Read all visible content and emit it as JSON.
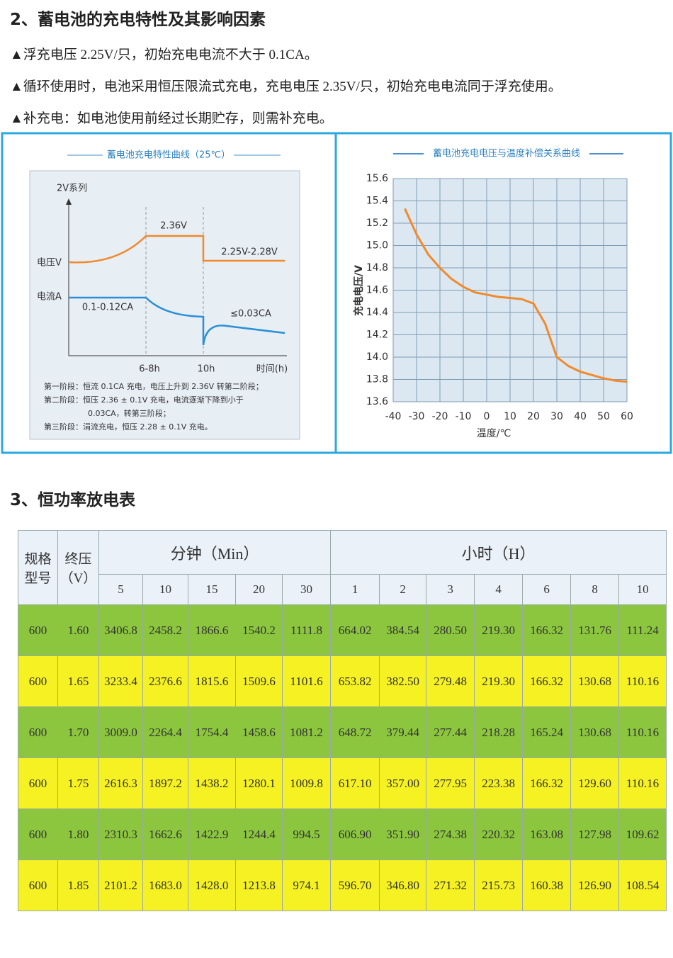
{
  "section2": {
    "title": "2、蓄电池的充电特性及其影响因素",
    "bullets": [
      "▲浮充电压 2.25V/只，初始充电电流不大于 0.1CA。",
      "▲循环使用时，电池采用恒压限流式充电，充电电压 2.35V/只，初始充电电流同于浮充使用。",
      "▲补充电：如电池使用前经过长期贮存，则需补充电。"
    ]
  },
  "charge_diagram": {
    "title": "蓄电池充电特性曲线（25℃）",
    "series_label": "2V系列",
    "voltage_axis": "电压V",
    "current_axis": "电流A",
    "voltage_boost": "2.36V",
    "voltage_float": "2.25V-2.28V",
    "current_start": "0.1-0.12CA",
    "current_end": "≤0.03CA",
    "time_1": "6-8h",
    "time_2": "10h",
    "time_axis": "时间(h)",
    "notes": [
      "第一阶段：恒流 0.1CA 充电，电压上升到 2.36V 转第二阶段；",
      "第二阶段：恒压 2.36 ± 0.1V 充电，电流逐渐下降到小于",
      "0.03CA，转第三阶段；",
      "第三阶段：涓流充电，恒压 2.28 ± 0.1V 充电。"
    ]
  },
  "chart_data": {
    "type": "line",
    "title": "蓄电池充电电压与温度补偿关系曲线",
    "x_label": "温度/℃",
    "y_label": "充电电压/V",
    "x": [
      -35,
      -30,
      -25,
      -20,
      -15,
      -10,
      -5,
      0,
      5,
      10,
      15,
      20,
      25,
      30,
      35,
      40,
      45,
      50,
      55,
      60
    ],
    "values": [
      15.33,
      15.1,
      14.92,
      14.8,
      14.7,
      14.63,
      14.58,
      14.56,
      14.54,
      14.53,
      14.52,
      14.48,
      14.3,
      14.0,
      13.92,
      13.87,
      13.84,
      13.81,
      13.79,
      13.78
    ],
    "color": "#f08a2c",
    "xlim": [
      -40,
      60
    ],
    "ylim": [
      13.6,
      15.6
    ],
    "xticks": [
      -40,
      -30,
      -20,
      -10,
      0,
      10,
      20,
      30,
      40,
      50,
      60
    ],
    "yticks": [
      13.6,
      13.8,
      {
        "value": 14,
        "label": "14.0"
      },
      14.2,
      14.4,
      14.6,
      14.8,
      {
        "value": 15,
        "label": "15.0"
      },
      15.2,
      15.4,
      15.6
    ],
    "grid": true
  },
  "section3": {
    "title": "3、恒功率放电表"
  },
  "table": {
    "model_header": "规格型号",
    "voltage_header": "终压（V）",
    "groups": [
      "分钟（Min）",
      "小时（H）"
    ],
    "columns": [
      "5",
      "10",
      "15",
      "20",
      "30",
      "1",
      "2",
      "3",
      "4",
      "6",
      "8",
      "10"
    ],
    "rows": [
      [
        "600",
        "1.60",
        "3406.8",
        "2458.2",
        "1866.6",
        "1540.2",
        "1111.8",
        "664.02",
        "384.54",
        "280.50",
        "219.30",
        "166.32",
        "131.76",
        "111.24"
      ],
      [
        "600",
        "1.65",
        "3233.4",
        "2376.6",
        "1815.6",
        "1509.6",
        "1101.6",
        "653.82",
        "382.50",
        "279.48",
        "219.30",
        "166.32",
        "130.68",
        "110.16"
      ],
      [
        "600",
        "1.70",
        "3009.0",
        "2264.4",
        "1754.4",
        "1458.6",
        "1081.2",
        "648.72",
        "379.44",
        "277.44",
        "218.28",
        "165.24",
        "130.68",
        "110.16"
      ],
      [
        "600",
        "1.75",
        "2616.3",
        "1897.2",
        "1438.2",
        "1280.1",
        "1009.8",
        "617.10",
        "357.00",
        "277.95",
        "223.38",
        "166.32",
        "129.60",
        "110.16"
      ],
      [
        "600",
        "1.80",
        "2310.3",
        "1662.6",
        "1422.9",
        "1244.4",
        "994.5",
        "606.90",
        "351.90",
        "274.38",
        "220.32",
        "163.08",
        "127.98",
        "109.62"
      ],
      [
        "600",
        "1.85",
        "2101.2",
        "1683.0",
        "1428.0",
        "1213.8",
        "974.1",
        "596.70",
        "346.80",
        "271.32",
        "215.73",
        "160.38",
        "126.90",
        "108.54"
      ]
    ]
  }
}
